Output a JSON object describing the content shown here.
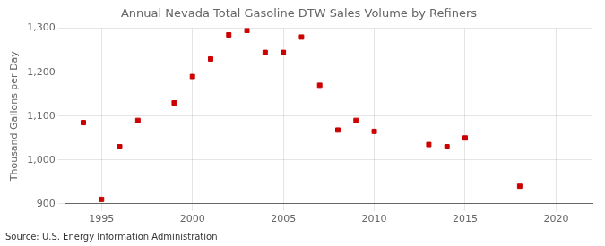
{
  "chart_data": {
    "type": "scatter",
    "title": "Annual Nevada Total Gasoline DTW Sales Volume by Refiners",
    "ylabel": "Thousand Gallons per Day",
    "source": "Source: U.S. Energy Information Administration",
    "x": [
      1994,
      1995,
      1996,
      1997,
      1999,
      2000,
      2001,
      2002,
      2003,
      2004,
      2005,
      2006,
      2007,
      2008,
      2009,
      2010,
      2013,
      2014,
      2015,
      2018
    ],
    "values": [
      1085,
      910,
      1030,
      1090,
      1130,
      1190,
      1230,
      1285,
      1295,
      1245,
      1245,
      1280,
      1170,
      1068,
      1090,
      1065,
      1035,
      1030,
      1050,
      940
    ],
    "color": "#cc0000",
    "marker": "square",
    "xlim": [
      1993,
      2022
    ],
    "ylim": [
      900,
      1300
    ],
    "xticks": [
      1995,
      2000,
      2005,
      2010,
      2015,
      2020
    ],
    "yticks": [
      900,
      {
        "value": 1000,
        "label": "1,000"
      },
      {
        "value": 1100,
        "label": "1,100"
      },
      {
        "value": 1200,
        "label": "1,200"
      },
      {
        "value": 1300,
        "label": "1,300"
      }
    ],
    "grid": true
  }
}
